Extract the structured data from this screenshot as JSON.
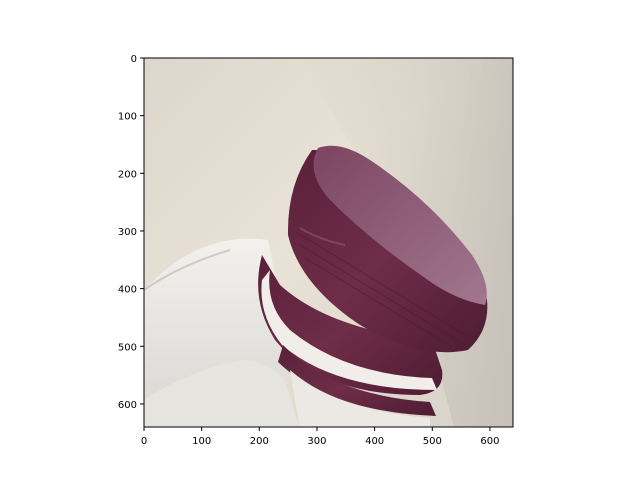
{
  "figure": {
    "image_semantic": "bottle-cap-photo",
    "axes": {
      "x_ticks": [
        "0",
        "100",
        "200",
        "300",
        "400",
        "500",
        "600"
      ],
      "y_ticks": [
        "0",
        "100",
        "200",
        "300",
        "400",
        "500",
        "600"
      ],
      "x_range": [
        0,
        640
      ],
      "y_range": [
        640,
        0
      ],
      "y_inverted": true
    }
  },
  "colors": {
    "background": "#ffffff",
    "bottle_plastic": "#e7e2d8",
    "cap_purple": "#6b2c46",
    "cap_top": "#8a5670",
    "axis": "#000000"
  }
}
